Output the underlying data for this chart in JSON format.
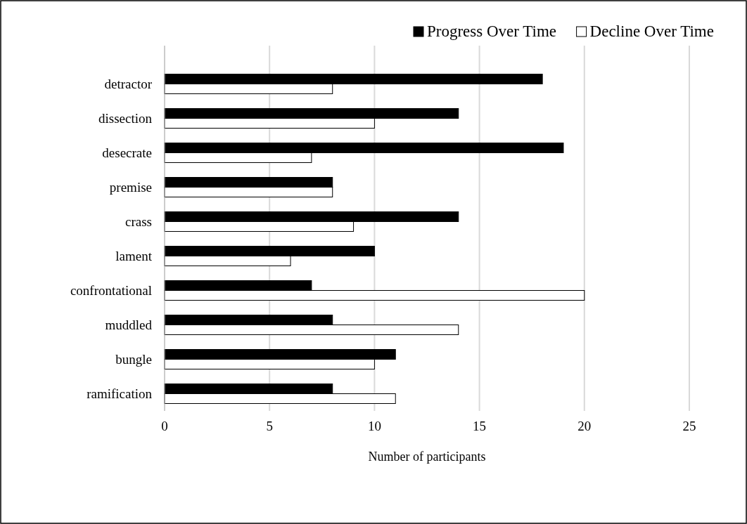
{
  "chart_data": {
    "type": "bar",
    "orientation": "horizontal",
    "xlabel": "Number of participants",
    "categories": [
      "detractor",
      "dissection",
      "desecrate",
      "premise",
      "crass",
      "lament",
      "confrontational",
      "muddled",
      "bungle",
      "ramification"
    ],
    "series": [
      {
        "name": "Progress Over Time",
        "color": "#000000",
        "values": [
          18,
          14,
          19,
          8,
          14,
          10,
          7,
          8,
          11,
          8
        ]
      },
      {
        "name": "Decline Over Time",
        "color": "#ffffff",
        "values": [
          8,
          10,
          7,
          8,
          9,
          6,
          20,
          14,
          10,
          11
        ]
      }
    ],
    "xlim": [
      0,
      25
    ],
    "xticks": [
      0,
      5,
      10,
      15,
      20,
      25
    ],
    "grid": "x",
    "legend": "top right"
  }
}
